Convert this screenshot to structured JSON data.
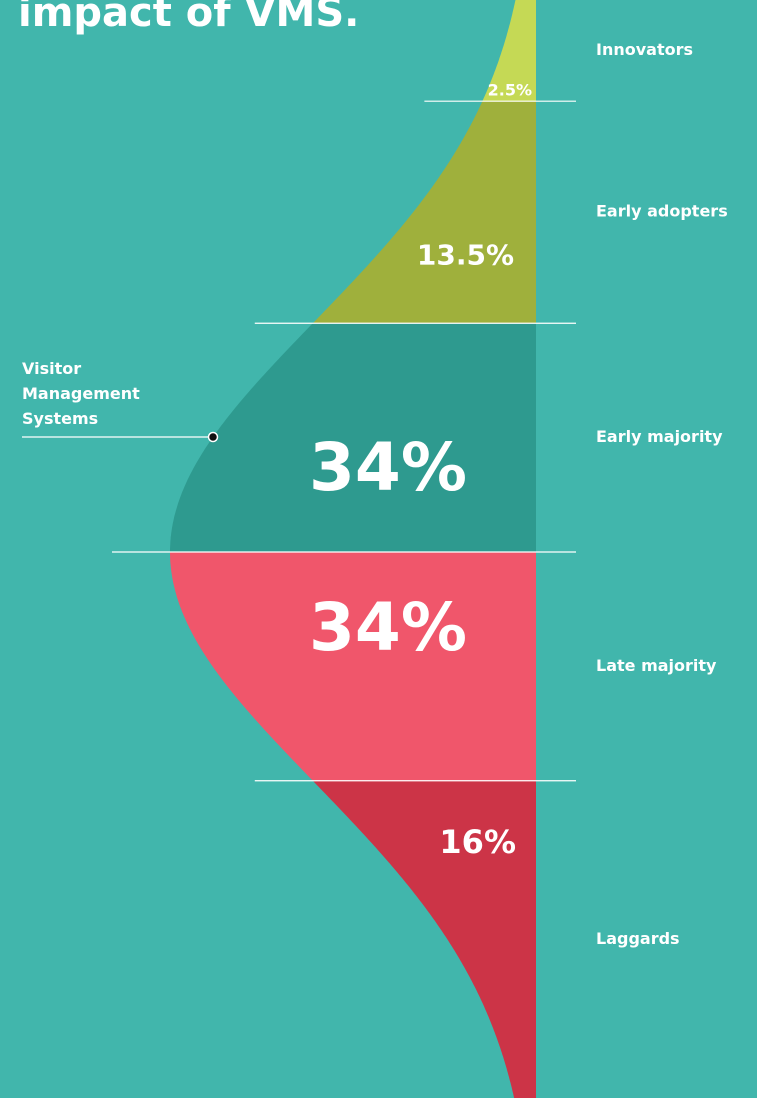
{
  "chart_data": {
    "type": "diffusion",
    "title": "impact of VMS.",
    "annotation": "Visitor Management Systems",
    "categories": [
      "Innovators",
      "Early adopters",
      "Early majority",
      "Late majority",
      "Laggards"
    ],
    "values": [
      2.5,
      13.5,
      34,
      34,
      16
    ],
    "value_labels": [
      "2.5%",
      "13.5%",
      "34%",
      "34%",
      "16%"
    ],
    "colors": [
      "#c5d955",
      "#9fb03c",
      "#2e9a8f",
      "#f0566b",
      "#cc3447"
    ]
  }
}
